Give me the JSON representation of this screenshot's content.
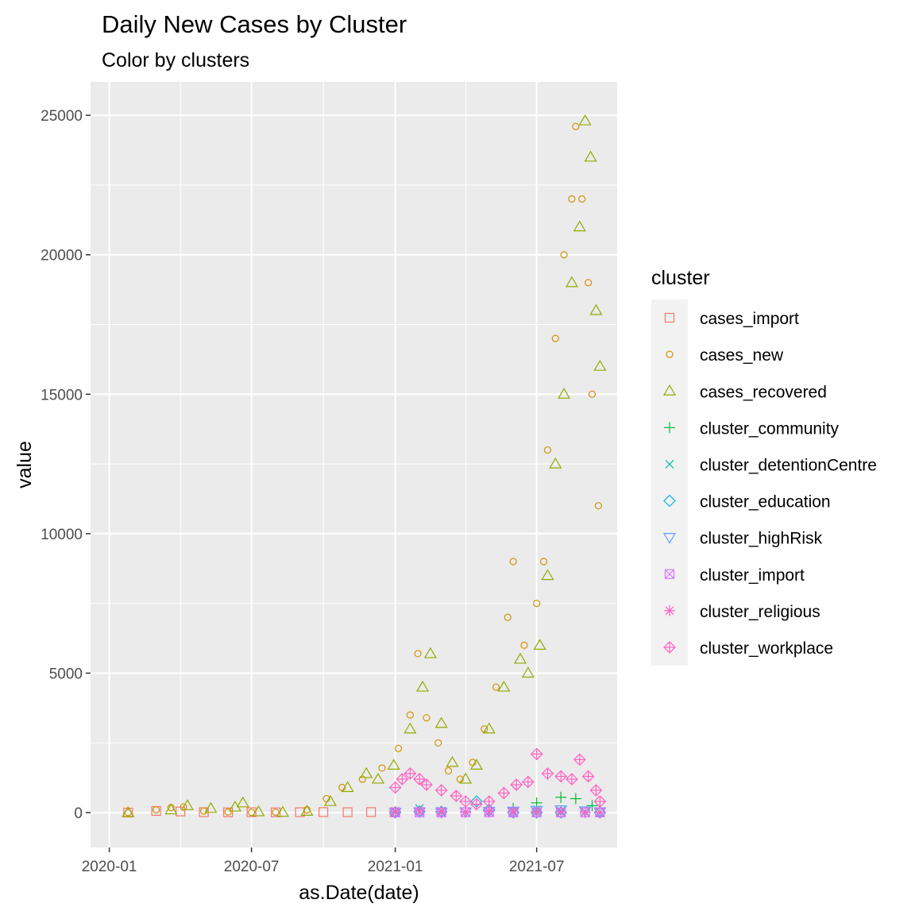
{
  "chart_data": {
    "type": "scatter",
    "title": "Daily New Cases by Cluster",
    "subtitle": "Color by clusters",
    "xlabel": "as.Date(date)",
    "ylabel": "value",
    "x_ticks": [
      "2020-01",
      "2020-07",
      "2021-01",
      "2021-07"
    ],
    "y_ticks": [
      0,
      5000,
      10000,
      15000,
      20000,
      25000
    ],
    "xlim": [
      "2019-12-08",
      "2021-10-12"
    ],
    "ylim": [
      -1250,
      26200
    ],
    "grid": true,
    "legend_title": "cluster",
    "legend_position": "right",
    "panel_background": "#EBEBEB",
    "series": [
      {
        "name": "cases_import",
        "color": "#F8766D",
        "shape": "square-open",
        "points": [
          [
            "2020-01-25",
            2
          ],
          [
            "2020-03-01",
            60
          ],
          [
            "2020-04-01",
            40
          ],
          [
            "2020-05-01",
            15
          ],
          [
            "2020-06-01",
            10
          ],
          [
            "2020-07-01",
            15
          ],
          [
            "2020-08-01",
            10
          ],
          [
            "2020-09-01",
            15
          ],
          [
            "2020-10-01",
            20
          ],
          [
            "2020-11-01",
            15
          ],
          [
            "2020-12-01",
            20
          ],
          [
            "2020-12-31",
            10
          ]
        ]
      },
      {
        "name": "cases_new",
        "color": "#D39200",
        "shape": "circle-open",
        "points": [
          [
            "2020-01-25",
            3
          ],
          [
            "2020-03-01",
            100
          ],
          [
            "2020-03-20",
            180
          ],
          [
            "2020-04-05",
            200
          ],
          [
            "2020-05-01",
            60
          ],
          [
            "2020-06-01",
            20
          ],
          [
            "2020-07-01",
            10
          ],
          [
            "2020-08-01",
            15
          ],
          [
            "2020-09-10",
            100
          ],
          [
            "2020-10-05",
            500
          ],
          [
            "2020-10-25",
            900
          ],
          [
            "2020-11-20",
            1200
          ],
          [
            "2020-12-15",
            1600
          ],
          [
            "2021-01-05",
            2300
          ],
          [
            "2021-01-20",
            3500
          ],
          [
            "2021-01-30",
            5700
          ],
          [
            "2021-02-10",
            3400
          ],
          [
            "2021-02-25",
            2500
          ],
          [
            "2021-03-10",
            1500
          ],
          [
            "2021-03-25",
            1200
          ],
          [
            "2021-04-10",
            1800
          ],
          [
            "2021-04-25",
            3000
          ],
          [
            "2021-05-10",
            4500
          ],
          [
            "2021-05-25",
            7000
          ],
          [
            "2021-06-01",
            9000
          ],
          [
            "2021-06-15",
            6000
          ],
          [
            "2021-07-01",
            7500
          ],
          [
            "2021-07-10",
            9000
          ],
          [
            "2021-07-15",
            13000
          ],
          [
            "2021-07-25",
            17000
          ],
          [
            "2021-08-05",
            20000
          ],
          [
            "2021-08-15",
            22000
          ],
          [
            "2021-08-20",
            24600
          ],
          [
            "2021-08-28",
            22000
          ],
          [
            "2021-09-05",
            19000
          ],
          [
            "2021-09-10",
            15000
          ],
          [
            "2021-09-18",
            11000
          ]
        ]
      },
      {
        "name": "cases_recovered",
        "color": "#93AA00",
        "shape": "triangle-open",
        "points": [
          [
            "2020-01-25",
            0
          ],
          [
            "2020-03-20",
            100
          ],
          [
            "2020-04-10",
            250
          ],
          [
            "2020-05-10",
            150
          ],
          [
            "2020-06-10",
            200
          ],
          [
            "2020-06-20",
            350
          ],
          [
            "2020-07-10",
            30
          ],
          [
            "2020-08-10",
            10
          ],
          [
            "2020-09-10",
            50
          ],
          [
            "2020-10-10",
            400
          ],
          [
            "2020-11-01",
            900
          ],
          [
            "2020-11-25",
            1400
          ],
          [
            "2020-12-10",
            1200
          ],
          [
            "2020-12-30",
            1700
          ],
          [
            "2021-01-20",
            3000
          ],
          [
            "2021-02-05",
            4500
          ],
          [
            "2021-02-15",
            5700
          ],
          [
            "2021-03-01",
            3200
          ],
          [
            "2021-03-15",
            1800
          ],
          [
            "2021-04-01",
            1200
          ],
          [
            "2021-04-15",
            1700
          ],
          [
            "2021-05-01",
            3000
          ],
          [
            "2021-05-20",
            4500
          ],
          [
            "2021-06-10",
            5500
          ],
          [
            "2021-06-20",
            5000
          ],
          [
            "2021-07-05",
            6000
          ],
          [
            "2021-07-15",
            8500
          ],
          [
            "2021-07-25",
            12500
          ],
          [
            "2021-08-05",
            15000
          ],
          [
            "2021-08-15",
            19000
          ],
          [
            "2021-08-25",
            21000
          ],
          [
            "2021-09-01",
            24800
          ],
          [
            "2021-09-08",
            23500
          ],
          [
            "2021-09-15",
            18000
          ],
          [
            "2021-09-20",
            16000
          ]
        ]
      },
      {
        "name": "cluster_community",
        "color": "#00BA38",
        "shape": "plus",
        "points": [
          [
            "2021-01-01",
            20
          ],
          [
            "2021-02-01",
            60
          ],
          [
            "2021-03-01",
            40
          ],
          [
            "2021-04-01",
            20
          ],
          [
            "2021-05-01",
            60
          ],
          [
            "2021-06-01",
            150
          ],
          [
            "2021-07-01",
            350
          ],
          [
            "2021-08-01",
            550
          ],
          [
            "2021-08-20",
            500
          ],
          [
            "2021-09-10",
            250
          ],
          [
            "2021-09-20",
            150
          ]
        ]
      },
      {
        "name": "cluster_detentionCentre",
        "color": "#00C19F",
        "shape": "cross",
        "points": [
          [
            "2021-01-01",
            50
          ],
          [
            "2021-02-01",
            150
          ],
          [
            "2021-03-01",
            60
          ],
          [
            "2021-04-01",
            20
          ],
          [
            "2021-05-01",
            30
          ],
          [
            "2021-06-01",
            50
          ],
          [
            "2021-07-01",
            100
          ],
          [
            "2021-08-01",
            60
          ],
          [
            "2021-09-01",
            30
          ],
          [
            "2021-09-20",
            10
          ]
        ]
      },
      {
        "name": "cluster_education",
        "color": "#00B9E3",
        "shape": "diamond-open",
        "points": [
          [
            "2021-01-01",
            10
          ],
          [
            "2021-02-01",
            40
          ],
          [
            "2021-03-01",
            30
          ],
          [
            "2021-04-15",
            400
          ],
          [
            "2021-05-01",
            100
          ],
          [
            "2021-06-01",
            10
          ],
          [
            "2021-07-01",
            5
          ],
          [
            "2021-08-01",
            5
          ],
          [
            "2021-09-20",
            5
          ]
        ]
      },
      {
        "name": "cluster_highRisk",
        "color": "#619CFF",
        "shape": "triangle-down-open",
        "points": [
          [
            "2021-01-01",
            10
          ],
          [
            "2021-02-01",
            30
          ],
          [
            "2021-03-01",
            20
          ],
          [
            "2021-04-01",
            30
          ],
          [
            "2021-05-01",
            40
          ],
          [
            "2021-06-01",
            50
          ],
          [
            "2021-07-01",
            80
          ],
          [
            "2021-08-01",
            100
          ],
          [
            "2021-09-01",
            60
          ],
          [
            "2021-09-20",
            30
          ]
        ]
      },
      {
        "name": "cluster_import",
        "color": "#DB72FB",
        "shape": "square-cross",
        "points": [
          [
            "2021-01-01",
            5
          ],
          [
            "2021-02-01",
            10
          ],
          [
            "2021-03-01",
            5
          ],
          [
            "2021-04-01",
            10
          ],
          [
            "2021-05-01",
            10
          ],
          [
            "2021-06-01",
            5
          ],
          [
            "2021-07-01",
            5
          ],
          [
            "2021-08-01",
            5
          ],
          [
            "2021-09-01",
            5
          ],
          [
            "2021-09-20",
            5
          ]
        ]
      },
      {
        "name": "cluster_religious",
        "color": "#FF61C3",
        "shape": "asterisk",
        "points": [
          [
            "2021-01-01",
            30
          ],
          [
            "2021-02-01",
            60
          ],
          [
            "2021-03-01",
            40
          ],
          [
            "2021-04-01",
            20
          ],
          [
            "2021-05-01",
            50
          ],
          [
            "2021-06-01",
            30
          ],
          [
            "2021-07-01",
            20
          ],
          [
            "2021-08-01",
            20
          ],
          [
            "2021-09-01",
            10
          ],
          [
            "2021-09-20",
            10
          ]
        ]
      },
      {
        "name": "cluster_workplace",
        "color": "#FF61C3",
        "shape": "diamond-plus",
        "points": [
          [
            "2021-01-01",
            900
          ],
          [
            "2021-01-10",
            1200
          ],
          [
            "2021-01-20",
            1400
          ],
          [
            "2021-02-01",
            1200
          ],
          [
            "2021-02-10",
            1000
          ],
          [
            "2021-03-01",
            800
          ],
          [
            "2021-03-20",
            600
          ],
          [
            "2021-04-01",
            400
          ],
          [
            "2021-04-15",
            300
          ],
          [
            "2021-05-01",
            400
          ],
          [
            "2021-05-20",
            700
          ],
          [
            "2021-06-05",
            1000
          ],
          [
            "2021-06-20",
            1100
          ],
          [
            "2021-07-01",
            2100
          ],
          [
            "2021-07-15",
            1400
          ],
          [
            "2021-08-01",
            1300
          ],
          [
            "2021-08-15",
            1200
          ],
          [
            "2021-08-25",
            1900
          ],
          [
            "2021-09-05",
            1300
          ],
          [
            "2021-09-15",
            800
          ],
          [
            "2021-09-20",
            400
          ]
        ]
      }
    ]
  }
}
